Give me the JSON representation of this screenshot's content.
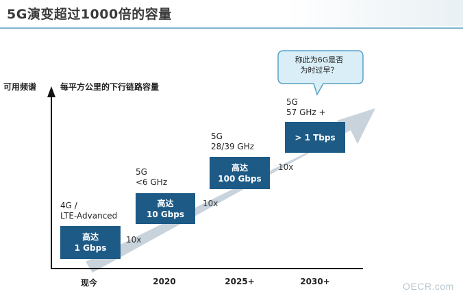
{
  "title": "5G演变超过1000倍的容量",
  "y_axis_label": "可用频谱",
  "subtitle": "每平方公里的下行链路容量",
  "callout": {
    "line1": "称此为6G是否",
    "line2": "为时过早？"
  },
  "stages": [
    {
      "tech_line1": "4G /",
      "tech_line2": "LTE-Advanced",
      "box_line1": "高达",
      "box_line2": "1 Gbps",
      "x_label": "现今"
    },
    {
      "tech_line1": "5G",
      "tech_line2": "<6 GHz",
      "box_line1": "高达",
      "box_line2": "10 Gbps",
      "x_label": "2020"
    },
    {
      "tech_line1": "5G",
      "tech_line2": "28/39 GHz",
      "box_line1": "高达",
      "box_line2": "100 Gbps",
      "x_label": "2025+"
    },
    {
      "tech_line1": "5G",
      "tech_line2": "57 GHz +",
      "box_line1": "> 1 Tbps",
      "box_line2": "",
      "x_label": "2030+"
    }
  ],
  "multipliers": [
    "10x",
    "10x",
    "10x"
  ],
  "watermark": "OECR.com",
  "colors": {
    "box": "#1d5a86",
    "arrow": "#c9d3dc",
    "bubble_fill": "#d9eef7",
    "bubble_stroke": "#5aa0c5",
    "rule": "#7fb3cf"
  }
}
